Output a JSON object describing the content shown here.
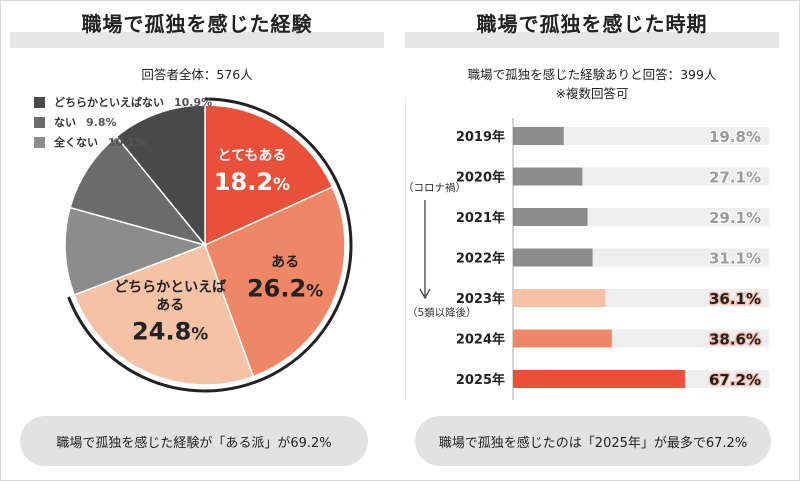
{
  "left_panel": {
    "title": "職場で孤独を感じた経験",
    "subtitle": "回答者全体：576人",
    "footer": "職場で孤独を感じた経験が「ある派」が69.2%"
  },
  "right_panel": {
    "title": "職場で孤独を感じた時期",
    "subtitle_line1": "職場で孤独を感じた経験ありと回答：399人",
    "subtitle_line2": "※複数回答可",
    "footer": "職場で孤独を感じたのは「2025年」が最多で67.2%",
    "annotation_top": "（コロナ禍）",
    "annotation_bottom": "（5類以降後）"
  },
  "chart_data": [
    {
      "type": "pie",
      "title": "職場で孤独を感じた経験",
      "slices": [
        {
          "label": "とてもある",
          "value": 18.2,
          "display": "18.2%",
          "color": "#e8503a"
        },
        {
          "label": "ある",
          "value": 26.2,
          "display": "26.2%",
          "color": "#ef8766"
        },
        {
          "label": "どちらかといえばある",
          "value": 24.8,
          "display": "24.8%",
          "color": "#f6c2a6"
        },
        {
          "label": "全くない",
          "value": 10.1,
          "display": "10.1%",
          "color": "#8c8c8c"
        },
        {
          "label": "ない",
          "value": 9.8,
          "display": "9.8%",
          "color": "#6b6b6b"
        },
        {
          "label": "どちらかといえばない",
          "value": 10.9,
          "display": "10.9%",
          "color": "#4a4a4a"
        }
      ],
      "legend": [
        {
          "label": "どちらかといえばない",
          "value": "10.9%",
          "color": "#4a4a4a"
        },
        {
          "label": "ない",
          "value": "9.8%",
          "color": "#6b6b6b"
        },
        {
          "label": "全くない",
          "value": "10.1%",
          "color": "#8c8c8c"
        }
      ],
      "legend_position": "top-left"
    },
    {
      "type": "bar",
      "orientation": "horizontal",
      "title": "職場で孤独を感じた時期",
      "categories": [
        "2019年",
        "2020年",
        "2021年",
        "2022年",
        "2023年",
        "2024年",
        "2025年"
      ],
      "values": [
        19.8,
        27.1,
        29.1,
        31.1,
        36.1,
        38.6,
        67.2
      ],
      "display": [
        "19.8%",
        "27.1%",
        "29.1%",
        "31.1%",
        "36.1%",
        "38.6%",
        "67.2%"
      ],
      "colors": [
        "#8c8c8c",
        "#8c8c8c",
        "#8c8c8c",
        "#8c8c8c",
        "#f6c2a6",
        "#ef8766",
        "#e8503a"
      ],
      "xlim": [
        0,
        100
      ]
    }
  ]
}
